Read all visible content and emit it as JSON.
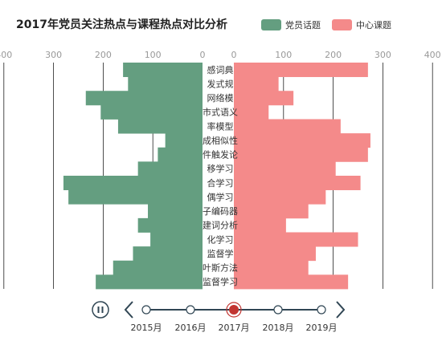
{
  "title": "2017年党员关注热点与课程热点对比分析",
  "chart_data": {
    "type": "bar",
    "orientation": "horizontal-mirrored",
    "title": "2017年党员关注热点与课程热点对比分析",
    "categories": [
      "感词典",
      "发式规",
      "网络模",
      "市式语义",
      "率模型",
      "成相似性",
      "件触发论",
      "移学习",
      "合学习",
      "偶学习",
      "子编码器",
      "建词分析",
      "化学习",
      "监督学",
      "叶斯方法",
      "监督学习"
    ],
    "series": [
      {
        "name": "党员话题",
        "color": "#649e80",
        "side": "left",
        "values": [
          160,
          150,
          235,
          205,
          170,
          75,
          90,
          130,
          280,
          270,
          110,
          130,
          105,
          140,
          180,
          215
        ]
      },
      {
        "name": "中心课题",
        "color": "#f48a8a",
        "side": "right",
        "values": [
          270,
          90,
          120,
          70,
          215,
          275,
          270,
          205,
          255,
          185,
          150,
          105,
          250,
          165,
          150,
          230
        ]
      }
    ],
    "xaxis_left": {
      "ticks": [
        400,
        300,
        200,
        100,
        0
      ],
      "max": 400
    },
    "xaxis_right": {
      "ticks": [
        0,
        100,
        200,
        300,
        400
      ],
      "max": 400
    },
    "grid": true,
    "legend_position": "top-right"
  },
  "timeline": {
    "labels": [
      "2015月",
      "2016月",
      "2017月",
      "2018月",
      "2019月"
    ],
    "current_index": 2,
    "active_color": "#c23531"
  },
  "icons": {
    "play": "pause-icon",
    "prev": "chevron-left-icon",
    "next": "chevron-right-icon"
  }
}
